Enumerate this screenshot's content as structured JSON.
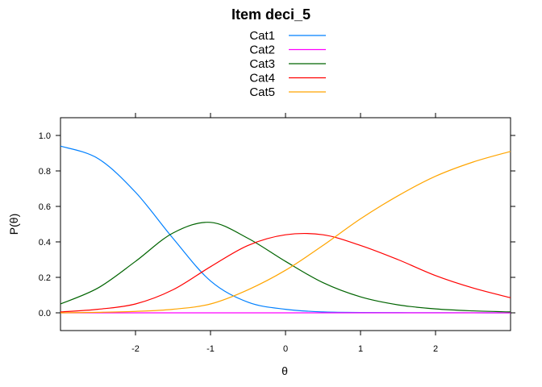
{
  "chart_data": {
    "type": "line",
    "title": "Item deci_5",
    "xlabel": "θ",
    "ylabel": "P(θ)",
    "xlim": [
      -3,
      3
    ],
    "ylim": [
      -0.1,
      1.1
    ],
    "x_ticks": [
      -2,
      -1,
      0,
      1,
      2
    ],
    "y_ticks": [
      0.0,
      0.2,
      0.4,
      0.6,
      0.8,
      1.0
    ],
    "x_tick_labels": [
      "-2",
      "-1",
      "0",
      "1",
      "2"
    ],
    "y_tick_labels": [
      "0.0",
      "0.2",
      "0.4",
      "0.6",
      "0.8",
      "1.0"
    ],
    "grid": false,
    "legend_position": "top",
    "x": [
      -3.0,
      -2.5,
      -2.0,
      -1.5,
      -1.0,
      -0.5,
      0.0,
      0.5,
      1.0,
      1.5,
      2.0,
      2.5,
      3.0
    ],
    "series": [
      {
        "name": "Cat1",
        "color": "#0080ff",
        "values": [
          0.94,
          0.87,
          0.68,
          0.42,
          0.18,
          0.06,
          0.02,
          0.005,
          0.002,
          0.001,
          0.0005,
          0.0002,
          0.0001
        ]
      },
      {
        "name": "Cat2",
        "color": "#ff00ff",
        "values": [
          0.0,
          0.0,
          0.0,
          0.0,
          0.0,
          0.0,
          0.0,
          0.0,
          0.0,
          0.0,
          0.0,
          0.0,
          0.0
        ]
      },
      {
        "name": "Cat3",
        "color": "#006400",
        "values": [
          0.05,
          0.14,
          0.29,
          0.45,
          0.51,
          0.42,
          0.29,
          0.17,
          0.09,
          0.045,
          0.022,
          0.011,
          0.005
        ]
      },
      {
        "name": "Cat4",
        "color": "#ff0000",
        "values": [
          0.005,
          0.02,
          0.05,
          0.13,
          0.26,
          0.38,
          0.44,
          0.44,
          0.38,
          0.3,
          0.21,
          0.14,
          0.085
        ]
      },
      {
        "name": "Cat5",
        "color": "#ffa500",
        "values": [
          0.0,
          0.003,
          0.008,
          0.02,
          0.05,
          0.13,
          0.24,
          0.38,
          0.53,
          0.66,
          0.77,
          0.85,
          0.91
        ]
      }
    ]
  }
}
